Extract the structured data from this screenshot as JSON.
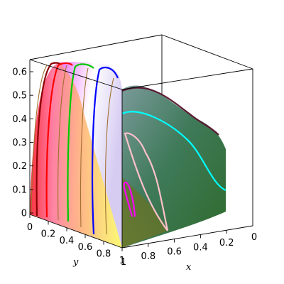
{
  "chart_data": {
    "type": "surface3d",
    "title": "",
    "xlabel": "x",
    "ylabel": "y",
    "zlabel": "",
    "xlim": [
      0,
      1
    ],
    "ylim": [
      0,
      1
    ],
    "zlim": [
      0,
      0.65
    ],
    "x_ticks": [
      "0.2",
      "0.4",
      "0.6",
      "0.8"
    ],
    "y_ticks": [
      "0",
      "0.2",
      "0.4",
      "0.6",
      "0.8",
      "1"
    ],
    "z_ticks": [
      "0",
      "0.1",
      "0.2",
      "0.3",
      "0.4",
      "0.5",
      "0.6"
    ],
    "x_tick_values": [
      0.2,
      0.4,
      0.6,
      0.8
    ],
    "y_tick_values": [
      0,
      0.2,
      0.4,
      0.6,
      0.8,
      1
    ],
    "z_tick_values": [
      0,
      0.1,
      0.2,
      0.3,
      0.4,
      0.5,
      0.6
    ],
    "x_zero_label": "0",
    "x_one_label": "1",
    "surface_samples": {
      "y": [
        0,
        0.05,
        0.1,
        0.2,
        0.3,
        0.4,
        0.5,
        0.6,
        0.7,
        0.8,
        0.9,
        1.0
      ],
      "z_at_x0": [
        0,
        0.52,
        0.58,
        0.62,
        0.63,
        0.63,
        0.63,
        0.63,
        0.6,
        0.55,
        0.5,
        0.45
      ],
      "z_at_x1": [
        0,
        0.3,
        0.38,
        0.44,
        0.46,
        0.44,
        0.36,
        0.24,
        0.13,
        0.07,
        0.03,
        0.0
      ]
    },
    "level_curves": [
      {
        "color": "#ff00ff",
        "y": 1.0,
        "z": 0.13
      },
      {
        "color": "#ffc0cb",
        "y": 1.0,
        "z": 0.26
      },
      {
        "color": "#00ffff",
        "y": 1.0,
        "z": 0.35
      },
      {
        "color": "#5c1a33",
        "y": 1.0,
        "z": 0.45
      },
      {
        "color": "#0000ff",
        "y": 0.56,
        "z": 0.63
      },
      {
        "color": "#00c800",
        "y": 0.38,
        "z": 0.64
      },
      {
        "color": "#ff0000",
        "y": 0.22,
        "z": 0.64
      },
      {
        "color": "#8b0000",
        "y": 0.15,
        "z": 0.64
      }
    ],
    "grid": false,
    "legend": "none"
  }
}
